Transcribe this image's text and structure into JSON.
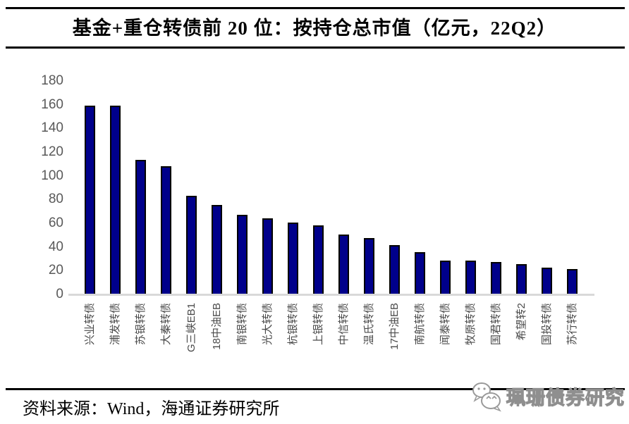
{
  "header": {
    "title": "基金+重仓转债前 20 位：按持仓总市值（亿元，22Q2）"
  },
  "chart_data": {
    "type": "bar",
    "title": "基金+重仓转债前 20 位：按持仓总市值（亿元，22Q2）",
    "categories": [
      "兴业转债",
      "浦发转债",
      "苏银转债",
      "大秦转债",
      "G三峡EB1",
      "18中油EB",
      "南银转债",
      "光大转债",
      "杭银转债",
      "上银转债",
      "中信转债",
      "温氏转债",
      "17中油EB",
      "南航转债",
      "闻泰转债",
      "牧原转债",
      "国君转债",
      "希望转2",
      "国投转债",
      "苏行转债"
    ],
    "values": [
      160,
      160,
      114,
      109,
      84,
      76,
      68,
      65,
      61,
      59,
      51,
      48,
      42,
      36,
      29,
      29,
      28,
      26,
      23,
      22
    ],
    "xlabel": "",
    "ylabel": "",
    "ylim": [
      0,
      180
    ],
    "ytick_step": 20,
    "grid": false,
    "legend_position": "none",
    "bar_color": "#00008B",
    "bar_border_color": "#000000",
    "axis_line_color": "#D9D9D9",
    "ytick_label_color": "#595959",
    "xtick_label_color": "#4a4a4a"
  },
  "footer": {
    "source_label": "资料来源：Wind，海通证券研究所"
  },
  "watermark": {
    "text": "珮珊债券研究",
    "icon": "wechat-chat-bubbles-icon"
  }
}
